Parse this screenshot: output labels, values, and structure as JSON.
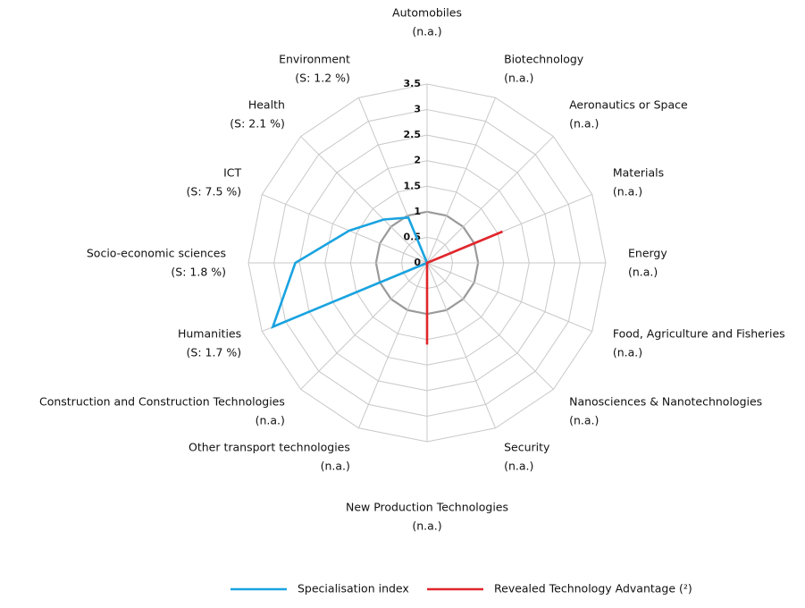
{
  "chart_data": {
    "type": "radar",
    "categories": [
      "Automobiles",
      "Biotechnology",
      "Aeronautics or Space",
      "Materials",
      "Energy",
      "Food, Agriculture and Fisheries",
      "Nanosciences & Nanotechnologies",
      "Security",
      "New Production Technologies",
      "Other transport technologies",
      "Construction and Construction Technologies",
      "Humanities",
      "Socio-economic sciences",
      "ICT",
      "Health",
      "Environment"
    ],
    "category_notes": [
      "(n.a.)",
      "(n.a.)",
      "(n.a.)",
      "(n.a.)",
      "(n.a.)",
      "(n.a.)",
      "(n.a.)",
      "(n.a.)",
      "(n.a.)",
      "(n.a.)",
      "(n.a.)",
      "(S: 1.7 %)",
      "(S: 1.8 %)",
      "(S: 7.5 %)",
      "(S: 2.1 %)",
      "(S: 1.2 %)"
    ],
    "series": [
      {
        "name": "Specialisation index",
        "color": "#1aa3e0",
        "values": [
          0,
          0,
          0,
          0,
          0,
          0,
          0,
          0,
          0,
          0,
          0,
          3.27,
          2.58,
          1.65,
          1.2,
          0.96
        ]
      },
      {
        "name": "Revealed Technology Advantage (²)",
        "color": "#e0262b",
        "values": [
          0,
          0,
          0,
          1.6,
          0,
          0,
          0,
          0,
          1.6,
          0,
          0,
          0,
          0,
          0,
          0,
          0
        ]
      }
    ],
    "ylim": [
      0,
      3.5
    ],
    "yticks": [
      0,
      0.5,
      1,
      1.5,
      2,
      2.5,
      3,
      3.5
    ],
    "grid": true,
    "legend": "bottom"
  }
}
